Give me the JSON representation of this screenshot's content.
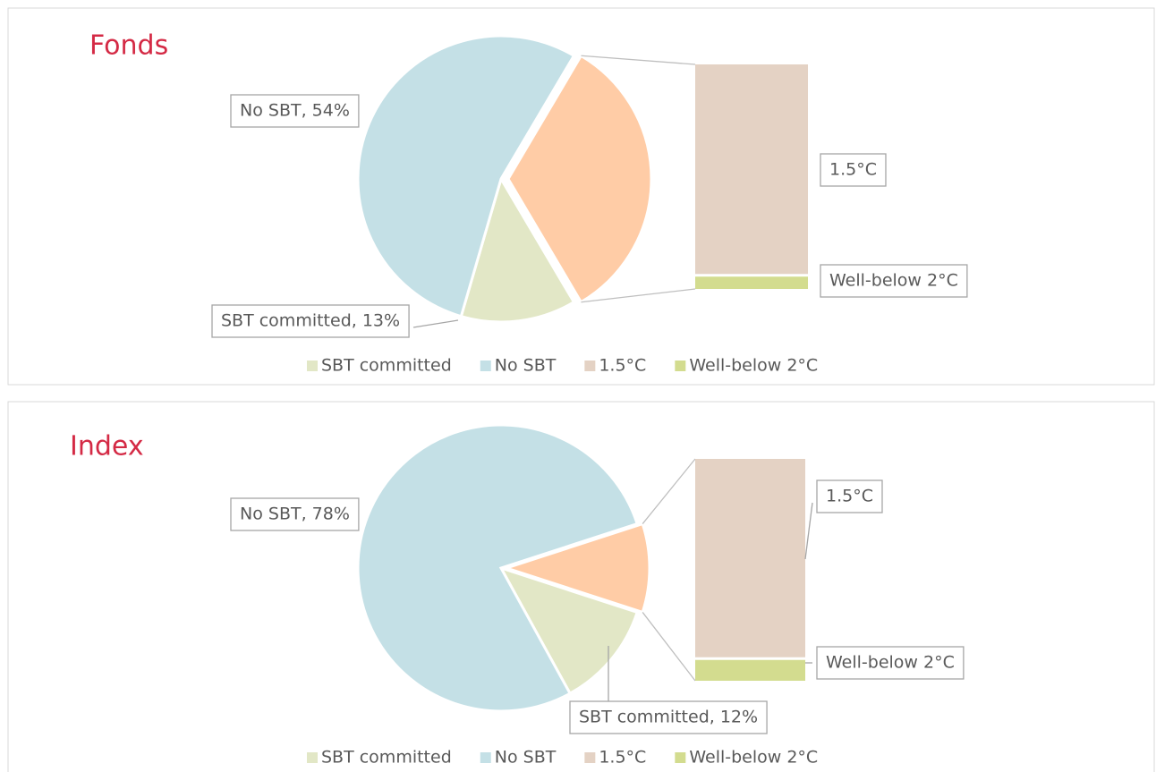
{
  "chart_data": [
    {
      "type": "bar-of-pie",
      "title": "Fonds",
      "categories": [
        "SBT committed",
        "No SBT",
        "1.5°C",
        "Well-below 2°C"
      ],
      "values": [
        13,
        54,
        31,
        2
      ],
      "value_labels": [
        "SBT committed, 13%",
        "No SBT, 54%",
        null,
        null
      ],
      "colors": [
        "#e2e7c6",
        "#c4e0e6",
        "#e4d2c4",
        "#d3dc8f"
      ],
      "other_color": "#ffcca6",
      "legend": "bottom"
    },
    {
      "type": "bar-of-pie",
      "title": "Index",
      "categories": [
        "SBT committed",
        "No SBT",
        "1.5°C",
        "Well-below 2°C"
      ],
      "values": [
        12,
        78,
        9,
        1
      ],
      "value_labels": [
        "SBT committed, 12%",
        "No SBT, 78%",
        null,
        null
      ],
      "colors": [
        "#e2e7c6",
        "#c4e0e6",
        "#e4d2c4",
        "#d3dc8f"
      ],
      "other_color": "#ffcca6",
      "legend": "bottom"
    }
  ]
}
